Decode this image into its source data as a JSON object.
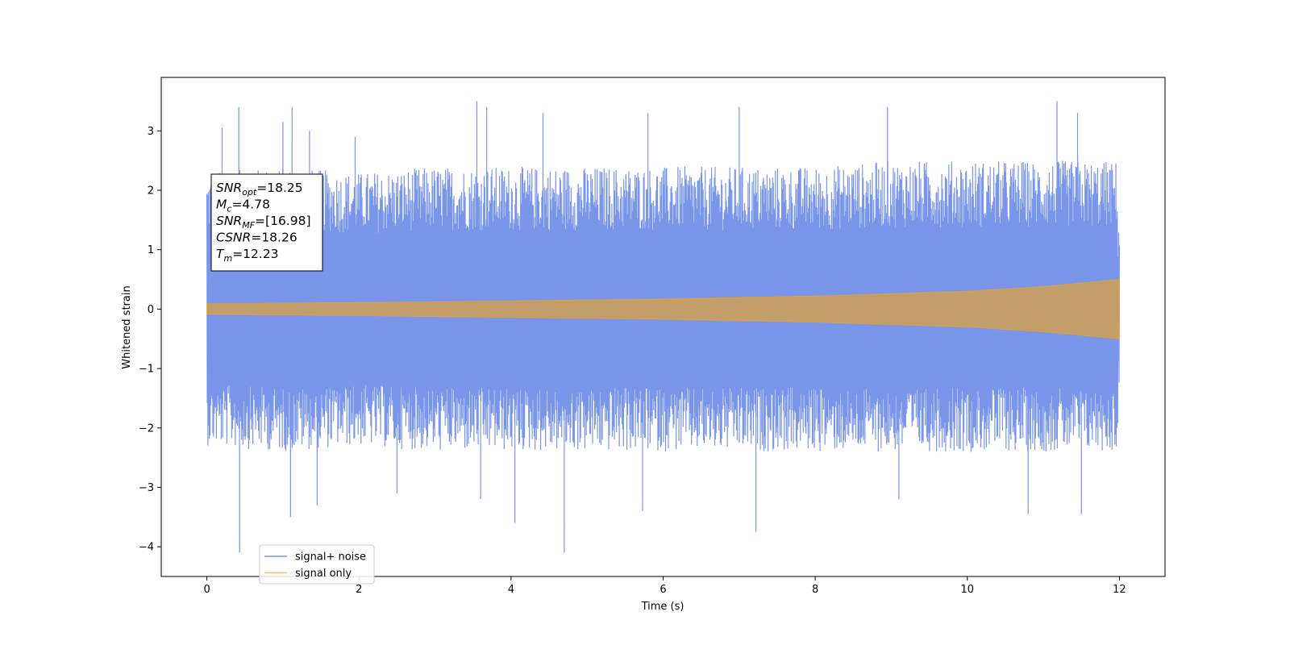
{
  "chart_data": {
    "type": "line",
    "xlabel": "Time (s)",
    "ylabel": "Whitened strain",
    "xlim": [
      -0.6,
      12.6
    ],
    "ylim": [
      -4.5,
      3.9
    ],
    "xticks": [
      0,
      2,
      4,
      6,
      8,
      10,
      12
    ],
    "xtick_labels": [
      "0",
      "2",
      "4",
      "6",
      "8",
      "10",
      "12"
    ],
    "yticks": [
      3,
      2,
      1,
      0,
      -1,
      -2,
      -3,
      -4
    ],
    "ytick_labels": [
      "3",
      "2",
      "1",
      "0",
      "−1",
      "−2",
      "−3",
      "−4"
    ],
    "grid": false,
    "legend_position": "lower-left",
    "series": [
      {
        "name": "signal+ noise",
        "color": "#4169e1",
        "duration": 12,
        "envelope_x": [
          0,
          1,
          2,
          3,
          4,
          5,
          6,
          7,
          8,
          9,
          10,
          11,
          12
        ],
        "envelope_upper": [
          2.3,
          2.4,
          2.3,
          2.4,
          2.4,
          2.4,
          2.4,
          2.4,
          2.4,
          2.5,
          2.5,
          2.5,
          2.5
        ],
        "envelope_lower": [
          -2.3,
          -2.4,
          -2.3,
          -2.4,
          -2.4,
          -2.4,
          -2.4,
          -2.4,
          -2.4,
          -2.4,
          -2.4,
          -2.4,
          -2.4
        ],
        "peaks_high": [
          [
            0.2,
            3.05
          ],
          [
            0.42,
            3.4
          ],
          [
            1.0,
            3.15
          ],
          [
            1.12,
            3.4
          ],
          [
            1.35,
            3.0
          ],
          [
            1.95,
            2.9
          ],
          [
            3.55,
            3.5
          ],
          [
            3.68,
            3.4
          ],
          [
            4.42,
            3.3
          ],
          [
            5.8,
            3.3
          ],
          [
            7.0,
            3.4
          ],
          [
            8.95,
            3.4
          ],
          [
            11.18,
            3.5
          ],
          [
            11.45,
            3.3
          ]
        ],
        "peaks_low": [
          [
            0.43,
            -4.1
          ],
          [
            1.1,
            -3.5
          ],
          [
            1.45,
            -3.3
          ],
          [
            2.5,
            -3.1
          ],
          [
            3.6,
            -3.2
          ],
          [
            4.05,
            -3.6
          ],
          [
            4.7,
            -4.1
          ],
          [
            5.73,
            -3.4
          ],
          [
            7.22,
            -3.75
          ],
          [
            9.1,
            -3.2
          ],
          [
            10.8,
            -3.45
          ],
          [
            11.5,
            -3.45
          ]
        ]
      },
      {
        "name": "signal only",
        "color": "#ffa500",
        "duration": 12,
        "amplitude_x": [
          0,
          2,
          4,
          6,
          8,
          10,
          11,
          12
        ],
        "amplitude": [
          0.09,
          0.11,
          0.14,
          0.17,
          0.22,
          0.3,
          0.38,
          0.5
        ]
      }
    ],
    "annotation": {
      "lines": [
        {
          "sym": "SNR",
          "sub": "opt",
          "value": "=18.25"
        },
        {
          "sym": "M",
          "sub": "c",
          "value": "=4.78"
        },
        {
          "sym": "SNR",
          "sub": "MF",
          "value": "=[16.98]"
        },
        {
          "sym": "CSNR",
          "sub": "",
          "value": "=18.26"
        },
        {
          "sym": "T",
          "sub": "m",
          "value": "=12.23"
        }
      ]
    },
    "legend": {
      "entries": [
        "signal+ noise",
        "signal only"
      ]
    }
  }
}
